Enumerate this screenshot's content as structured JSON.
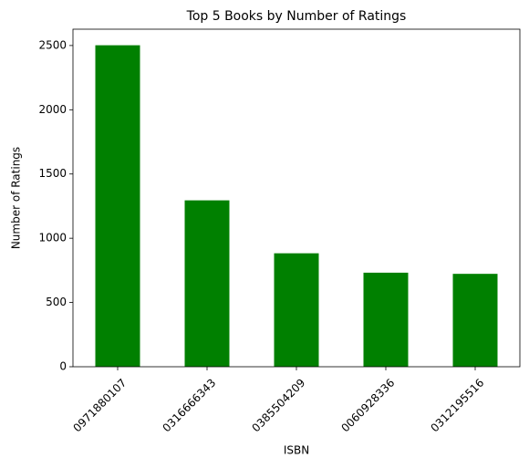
{
  "chart_data": {
    "type": "bar",
    "title": "Top 5 Books by Number of Ratings",
    "x_label": "ISBN",
    "y_label": "Number of Ratings",
    "categories": [
      "0971880107",
      "0316666343",
      "0385504209",
      "0060928336",
      "0312195516"
    ],
    "values": [
      2502,
      1295,
      883,
      732,
      723
    ],
    "color": "#008000",
    "ylim": [
      0,
      2627
    ],
    "yticks": [
      0,
      500,
      1000,
      1500,
      2000,
      2500
    ],
    "grid": false
  }
}
